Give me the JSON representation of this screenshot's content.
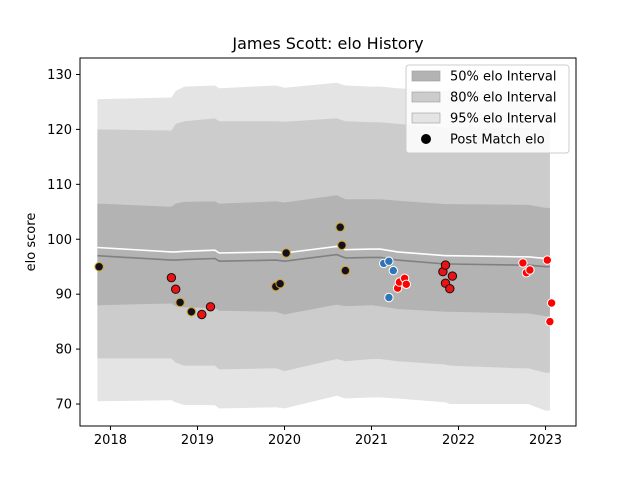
{
  "chart_data": {
    "type": "scatter",
    "title": "James Scott: elo History",
    "xlabel": "",
    "ylabel": "elo score",
    "xlim": [
      2017.65,
      2023.35
    ],
    "ylim": [
      66,
      133
    ],
    "x_ticks": [
      2018,
      2019,
      2020,
      2021,
      2022,
      2023
    ],
    "y_ticks": [
      70,
      80,
      90,
      100,
      110,
      120,
      130
    ],
    "grid": false,
    "legend_position": "top-right",
    "legend": [
      {
        "label": "50% elo Interval",
        "kind": "band",
        "color": "#b3b3b3"
      },
      {
        "label": "80% elo Interval",
        "kind": "band",
        "color": "#cccccc"
      },
      {
        "label": "95% elo Interval",
        "kind": "band",
        "color": "#e4e4e4"
      },
      {
        "label": "Post Match elo",
        "kind": "marker",
        "color": "#000000"
      }
    ],
    "bands": {
      "x": [
        2017.85,
        2018.7,
        2018.75,
        2018.85,
        2019.2,
        2019.25,
        2019.9,
        2020.0,
        2020.6,
        2020.7,
        2021.0,
        2021.1,
        2021.3,
        2021.85,
        2021.9,
        2022.7,
        2022.8,
        2023.0,
        2023.05
      ],
      "mean": [
        97.0,
        96.2,
        96.2,
        96.3,
        96.5,
        96.0,
        96.2,
        96.0,
        97.2,
        96.6,
        96.7,
        96.7,
        96.2,
        95.5,
        95.5,
        95.3,
        95.3,
        95.0,
        95.0
      ],
      "p50_lo": [
        88.0,
        88.3,
        87.8,
        87.6,
        87.5,
        87.0,
        86.8,
        86.3,
        88.1,
        87.8,
        88.0,
        87.8,
        87.3,
        86.8,
        86.8,
        86.5,
        86.5,
        86.0,
        86.0
      ],
      "p50_hi": [
        106.5,
        105.9,
        106.5,
        106.8,
        106.9,
        106.5,
        106.9,
        106.7,
        108.0,
        107.3,
        107.3,
        107.3,
        107.0,
        106.4,
        106.4,
        106.3,
        106.3,
        105.7,
        105.7
      ],
      "p80_lo": [
        78.3,
        78.3,
        77.5,
        77.0,
        77.0,
        76.3,
        76.5,
        76.0,
        78.2,
        77.8,
        78.2,
        78.2,
        77.8,
        77.2,
        77.0,
        76.5,
        76.5,
        75.7,
        75.7
      ],
      "p80_hi": [
        120.0,
        119.8,
        121.0,
        121.5,
        122.0,
        121.5,
        121.5,
        121.4,
        122.0,
        121.5,
        121.3,
        121.3,
        121.0,
        120.3,
        120.5,
        120.2,
        120.2,
        119.8,
        119.8
      ],
      "p95_lo": [
        70.5,
        70.7,
        70.3,
        69.8,
        69.8,
        69.2,
        69.4,
        69.2,
        71.5,
        71.0,
        71.2,
        71.2,
        71.0,
        70.3,
        70.0,
        70.0,
        70.0,
        68.8,
        68.8
      ],
      "p95_hi": [
        125.5,
        125.8,
        127.0,
        127.8,
        128.0,
        127.5,
        128.0,
        127.6,
        128.5,
        128.0,
        127.8,
        127.8,
        127.5,
        127.0,
        127.2,
        127.0,
        127.0,
        126.5,
        126.5
      ]
    },
    "mean_line_color": "#808080",
    "upper_line_color": "#ffffff",
    "series": [
      {
        "name": "Post Match elo",
        "fill": "#111122",
        "edge": "#d4a017",
        "points": [
          [
            2017.87,
            95.0
          ],
          [
            2018.8,
            88.5
          ],
          [
            2018.93,
            86.8
          ],
          [
            2019.9,
            91.4
          ],
          [
            2019.95,
            91.9
          ],
          [
            2020.02,
            97.5
          ],
          [
            2020.64,
            102.2
          ],
          [
            2020.66,
            98.9
          ],
          [
            2020.7,
            94.3
          ]
        ]
      },
      {
        "fill": "#ee1111",
        "edge": "#111111",
        "points": [
          [
            2018.7,
            93.0
          ],
          [
            2018.75,
            90.9
          ],
          [
            2019.05,
            86.3
          ],
          [
            2019.15,
            87.7
          ],
          [
            2021.82,
            94.1
          ],
          [
            2021.85,
            95.3
          ],
          [
            2021.85,
            92.0
          ],
          [
            2021.9,
            91.0
          ],
          [
            2021.93,
            93.3
          ]
        ]
      },
      {
        "fill": "#2f74b5",
        "edge": "#ffffff",
        "points": [
          [
            2021.14,
            95.6
          ],
          [
            2021.2,
            96.0
          ],
          [
            2021.2,
            89.4
          ],
          [
            2021.25,
            94.3
          ]
        ]
      },
      {
        "fill": "#ff0000",
        "edge": "#ffffff",
        "points": [
          [
            2021.3,
            91.1
          ],
          [
            2021.32,
            92.2
          ],
          [
            2021.38,
            92.9
          ],
          [
            2021.4,
            91.8
          ],
          [
            2022.74,
            95.7
          ],
          [
            2022.78,
            93.9
          ],
          [
            2022.82,
            94.4
          ],
          [
            2023.02,
            96.2
          ],
          [
            2023.05,
            85.0
          ],
          [
            2023.07,
            88.4
          ]
        ]
      }
    ]
  }
}
